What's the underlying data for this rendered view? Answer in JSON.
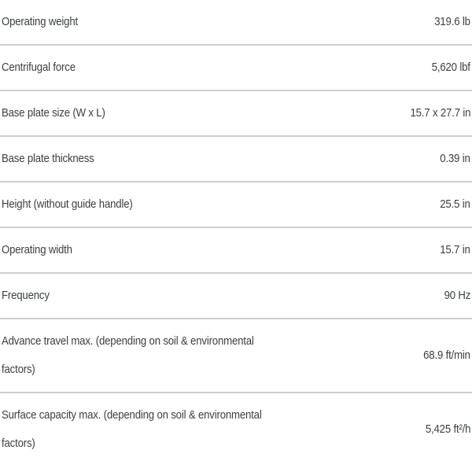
{
  "spec_table": {
    "rows": [
      {
        "label": "Operating weight",
        "value": "319.6 lb"
      },
      {
        "label": "Centrifugal force",
        "value": "5,620 lbf"
      },
      {
        "label": "Base plate size (W x L)",
        "value": "15.7 x 27.7 in"
      },
      {
        "label": "Base plate thickness",
        "value": "0.39 in"
      },
      {
        "label": "Height (without guide handle)",
        "value": "25.5 in"
      },
      {
        "label": "Operating width",
        "value": "15.7 in"
      },
      {
        "label": "Frequency",
        "value": "90 Hz"
      },
      {
        "label": "Advance travel max. (depending on soil & environmental factors)",
        "value": "68.9 ft/min"
      },
      {
        "label": "Surface capacity max. (depending on soil & environmental factors)",
        "value": "5,425 ft²/h"
      }
    ]
  }
}
